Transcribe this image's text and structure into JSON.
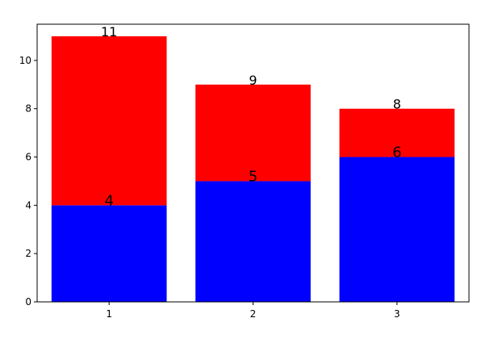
{
  "chart_data": {
    "type": "bar",
    "stacked": true,
    "title": "",
    "xlabel": "",
    "ylabel": "",
    "categories": [
      "1",
      "2",
      "3"
    ],
    "x": [
      1,
      2,
      3
    ],
    "series": [
      {
        "values": [
          4,
          5,
          6
        ],
        "color": "#0000ff"
      },
      {
        "values": [
          7,
          4,
          2
        ],
        "color": "#ff0000"
      }
    ],
    "data_labels": {
      "bottom": [
        "4",
        "5",
        "6"
      ],
      "total": [
        "11",
        "9",
        "8"
      ]
    },
    "xlim": [
      0.5,
      3.5
    ],
    "ylim": [
      0,
      11.5
    ],
    "yticks": [
      0,
      2,
      4,
      6,
      8,
      10
    ],
    "xticks": [
      1,
      2,
      3
    ],
    "grid": false,
    "legend": false
  }
}
